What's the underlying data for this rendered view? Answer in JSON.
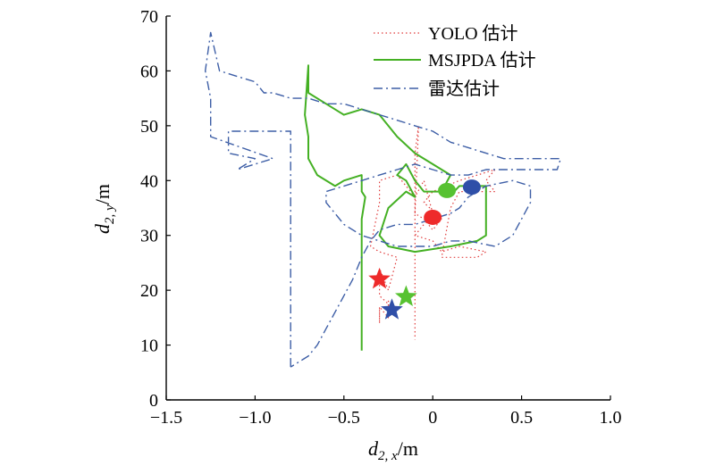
{
  "chart_data": {
    "type": "line",
    "title": "",
    "xlabel": {
      "base": "d",
      "sub": "2, x",
      "unit": "/m"
    },
    "ylabel": {
      "base": "d",
      "sub": "2, y",
      "unit": "/m"
    },
    "xlim": [
      -1.5,
      1.0
    ],
    "ylim": [
      0,
      70
    ],
    "x_ticks": [
      -1.5,
      -1.0,
      -0.5,
      0,
      0.5,
      1.0
    ],
    "x_tick_labels": [
      "−1.5",
      "−1.0",
      "−0.5",
      "0",
      "0.5",
      "1.0"
    ],
    "y_ticks": [
      0,
      10,
      20,
      30,
      40,
      50,
      60,
      70
    ],
    "y_tick_labels": [
      "0",
      "10",
      "20",
      "30",
      "40",
      "50",
      "60",
      "70"
    ],
    "grid": false,
    "legend_position": "top-right",
    "series": [
      {
        "name": "YOLO 估计",
        "color": "#e03a3a",
        "dash": "1.5,3",
        "width": 1.2,
        "points": [
          [
            -0.3,
            16.5
          ],
          [
            -0.3,
            14
          ],
          [
            -0.3,
            17
          ],
          [
            -0.25,
            15
          ],
          [
            -0.25,
            18
          ],
          [
            -0.2,
            16
          ],
          [
            -0.3,
            19
          ],
          [
            -0.3,
            24
          ],
          [
            -0.25,
            20
          ],
          [
            -0.2,
            26
          ],
          [
            -0.3,
            27
          ],
          [
            -0.35,
            28
          ],
          [
            -0.3,
            36
          ],
          [
            -0.3,
            40
          ],
          [
            -0.2,
            41
          ],
          [
            -0.1,
            37
          ],
          [
            -0.05,
            40
          ],
          [
            0,
            34
          ],
          [
            -0.1,
            30
          ],
          [
            0,
            29
          ],
          [
            0.05,
            27
          ],
          [
            0.15,
            28
          ],
          [
            0.3,
            27
          ],
          [
            0.25,
            26
          ],
          [
            0.05,
            26
          ],
          [
            0.1,
            35
          ],
          [
            0.15,
            38
          ],
          [
            0.35,
            38
          ],
          [
            0.3,
            40
          ],
          [
            0.35,
            42
          ],
          [
            0.15,
            40
          ],
          [
            0,
            38
          ],
          [
            -0.05,
            36
          ],
          [
            0.05,
            33
          ],
          [
            0,
            31
          ],
          [
            -0.05,
            33
          ],
          [
            -0.1,
            34
          ],
          [
            -0.08,
            50
          ],
          [
            -0.1,
            45
          ],
          [
            -0.1,
            11
          ]
        ]
      },
      {
        "name": "MSJPDA 估计",
        "color": "#44b023",
        "dash": "",
        "width": 2,
        "points": [
          [
            -0.4,
            9
          ],
          [
            -0.4,
            14
          ],
          [
            -0.4,
            20
          ],
          [
            -0.4,
            26
          ],
          [
            -0.4,
            33
          ],
          [
            -0.38,
            37
          ],
          [
            -0.4,
            38
          ],
          [
            -0.4,
            41
          ],
          [
            -0.5,
            40
          ],
          [
            -0.55,
            39
          ],
          [
            -0.65,
            41
          ],
          [
            -0.7,
            44
          ],
          [
            -0.7,
            48
          ],
          [
            -0.72,
            52
          ],
          [
            -0.7,
            61
          ],
          [
            -0.7,
            56
          ],
          [
            -0.6,
            54
          ],
          [
            -0.5,
            52
          ],
          [
            -0.4,
            53
          ],
          [
            -0.3,
            52
          ],
          [
            -0.25,
            50
          ],
          [
            -0.2,
            48
          ],
          [
            -0.1,
            45
          ],
          [
            0,
            43
          ],
          [
            0.1,
            41
          ],
          [
            0.05,
            38
          ],
          [
            0.1,
            39
          ],
          [
            0.12,
            38
          ],
          [
            0.15,
            39
          ],
          [
            0.3,
            39
          ],
          [
            0.3,
            30
          ],
          [
            0.25,
            29
          ],
          [
            0.1,
            28
          ],
          [
            -0.1,
            27
          ],
          [
            -0.25,
            28
          ],
          [
            -0.3,
            30
          ],
          [
            -0.25,
            35
          ],
          [
            -0.15,
            38
          ],
          [
            -0.1,
            37
          ],
          [
            -0.15,
            40
          ],
          [
            -0.2,
            41
          ],
          [
            -0.15,
            43
          ],
          [
            -0.1,
            40
          ],
          [
            -0.05,
            38
          ],
          [
            0.05,
            38
          ]
        ]
      },
      {
        "name": "雷达估计",
        "color": "#3d5ea6",
        "dash": "10,4,2,4",
        "width": 1.4,
        "points": [
          [
            -0.8,
            6
          ],
          [
            -0.8,
            25
          ],
          [
            -0.8,
            40
          ],
          [
            -0.8,
            49
          ],
          [
            -1.15,
            49
          ],
          [
            -1.15,
            45
          ],
          [
            -1.0,
            44
          ],
          [
            -1.1,
            42
          ],
          [
            -0.9,
            44
          ],
          [
            -1.25,
            48
          ],
          [
            -1.25,
            55
          ],
          [
            -1.28,
            60
          ],
          [
            -1.25,
            67
          ],
          [
            -1.2,
            60
          ],
          [
            -1.1,
            59
          ],
          [
            -1.0,
            58
          ],
          [
            -0.95,
            56
          ],
          [
            -0.9,
            56
          ],
          [
            -0.8,
            55
          ],
          [
            -0.7,
            55
          ],
          [
            -0.6,
            54
          ],
          [
            -0.5,
            54
          ],
          [
            -0.4,
            53
          ],
          [
            -0.3,
            52
          ],
          [
            -0.2,
            51
          ],
          [
            -0.1,
            50
          ],
          [
            0,
            49
          ],
          [
            0.1,
            47
          ],
          [
            0.2,
            46
          ],
          [
            0.3,
            45
          ],
          [
            0.4,
            44
          ],
          [
            0.5,
            44
          ],
          [
            0.6,
            44
          ],
          [
            0.72,
            44
          ],
          [
            0.7,
            42
          ],
          [
            0.5,
            42
          ],
          [
            0.4,
            42
          ],
          [
            0.3,
            42
          ],
          [
            0.2,
            41
          ],
          [
            0.1,
            41
          ],
          [
            0,
            42
          ],
          [
            -0.1,
            43
          ],
          [
            -0.2,
            42
          ],
          [
            -0.3,
            41
          ],
          [
            -0.4,
            40
          ],
          [
            -0.5,
            39
          ],
          [
            -0.6,
            38
          ],
          [
            -0.6,
            36
          ],
          [
            -0.55,
            34
          ],
          [
            -0.5,
            32
          ],
          [
            -0.4,
            30
          ],
          [
            -0.3,
            29
          ],
          [
            -0.2,
            28
          ],
          [
            -0.1,
            28
          ],
          [
            0,
            28
          ],
          [
            0.1,
            29
          ],
          [
            0.2,
            29
          ],
          [
            0.35,
            28
          ],
          [
            0.45,
            30
          ],
          [
            0.5,
            33
          ],
          [
            0.55,
            36
          ],
          [
            0.55,
            39
          ],
          [
            0.45,
            40
          ],
          [
            0.3,
            39
          ],
          [
            0.2,
            37
          ],
          [
            0.15,
            35
          ],
          [
            0.1,
            34
          ],
          [
            0.0,
            33
          ],
          [
            -0.1,
            32
          ],
          [
            -0.2,
            32
          ],
          [
            -0.3,
            31
          ],
          [
            -0.35,
            29
          ],
          [
            -0.4,
            26
          ],
          [
            -0.45,
            22
          ],
          [
            -0.5,
            19
          ],
          [
            -0.55,
            16
          ],
          [
            -0.6,
            13
          ],
          [
            -0.65,
            10
          ],
          [
            -0.7,
            8
          ],
          [
            -0.8,
            6
          ]
        ]
      }
    ],
    "markers": [
      {
        "shape": "circle",
        "x": 0.08,
        "y": 38.2,
        "color": "#57c231"
      },
      {
        "shape": "circle",
        "x": 0.22,
        "y": 38.8,
        "color": "#2f4fa8"
      },
      {
        "shape": "circle",
        "x": 0.0,
        "y": 33.3,
        "color": "#ee2a2a"
      },
      {
        "shape": "star",
        "x": -0.3,
        "y": 22.0,
        "color": "#ee2a2a"
      },
      {
        "shape": "star",
        "x": -0.15,
        "y": 18.8,
        "color": "#57c231"
      },
      {
        "shape": "star",
        "x": -0.23,
        "y": 16.4,
        "color": "#2f4fa8"
      }
    ]
  }
}
